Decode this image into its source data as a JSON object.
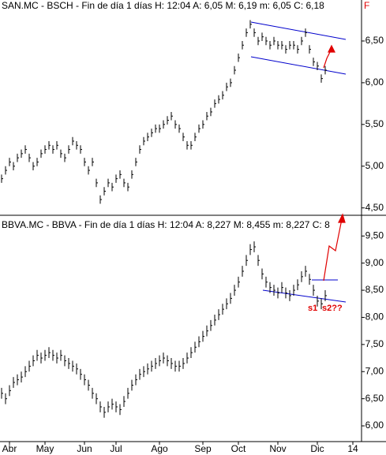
{
  "chart_data": [
    {
      "type": "ohlc",
      "title": "SAN.MC - BSCH - Fin de día 1 días H: 12:04 A: 6,05 M: 6,19 m: 6,05 C: 6,18",
      "flag": "F",
      "color": "#000000",
      "ylim": [
        4.44,
        6.84
      ],
      "yticks": [
        {
          "value": 6.5,
          "label": "6,50"
        },
        {
          "value": 6.0,
          "label": "6,00"
        },
        {
          "value": 5.5,
          "label": "5,50"
        },
        {
          "value": 5.0,
          "label": "5,00"
        },
        {
          "value": 4.5,
          "label": "4,50"
        }
      ],
      "high": [
        4.9,
        5.0,
        5.1,
        5.05,
        5.15,
        5.2,
        5.25,
        5.15,
        5.05,
        5.1,
        5.2,
        5.25,
        5.3,
        5.25,
        5.3,
        5.2,
        5.15,
        5.25,
        5.35,
        5.3,
        5.25,
        5.1,
        5.0,
        5.1,
        4.85,
        4.65,
        4.75,
        4.85,
        4.8,
        4.9,
        4.95,
        4.85,
        4.8,
        4.95,
        5.1,
        5.25,
        5.35,
        5.4,
        5.45,
        5.5,
        5.5,
        5.55,
        5.6,
        5.65,
        5.55,
        5.5,
        5.4,
        5.3,
        5.3,
        5.4,
        5.5,
        5.55,
        5.65,
        5.7,
        5.8,
        5.85,
        5.9,
        6.0,
        6.05,
        6.2,
        6.35,
        6.5,
        6.65,
        6.75,
        6.65,
        6.55,
        6.6,
        6.55,
        6.5,
        6.55,
        6.5,
        6.5,
        6.45,
        6.5,
        6.5,
        6.45,
        6.55,
        6.65,
        6.45,
        6.3,
        6.25,
        6.1,
        6.2
      ],
      "low": [
        4.8,
        4.9,
        5.0,
        4.95,
        5.05,
        5.1,
        5.15,
        5.05,
        4.95,
        5.0,
        5.1,
        5.15,
        5.2,
        5.15,
        5.2,
        5.1,
        5.05,
        5.15,
        5.25,
        5.2,
        5.15,
        5.0,
        4.9,
        5.0,
        4.75,
        4.55,
        4.65,
        4.75,
        4.7,
        4.8,
        4.85,
        4.75,
        4.7,
        4.85,
        5.0,
        5.15,
        5.25,
        5.3,
        5.35,
        5.4,
        5.4,
        5.45,
        5.5,
        5.55,
        5.45,
        5.4,
        5.3,
        5.2,
        5.2,
        5.3,
        5.4,
        5.45,
        5.55,
        5.6,
        5.7,
        5.75,
        5.8,
        5.9,
        5.95,
        6.1,
        6.25,
        6.4,
        6.55,
        6.65,
        6.55,
        6.45,
        6.5,
        6.45,
        6.4,
        6.45,
        6.4,
        6.4,
        6.35,
        6.4,
        6.4,
        6.35,
        6.45,
        6.55,
        6.35,
        6.2,
        6.15,
        6.0,
        6.1
      ]
    },
    {
      "type": "ohlc",
      "title": "BBVA.MC - BBVA - Fin de día 1 días H: 12:04 A: 8,227 M: 8,455 m: 8,227 C: 8",
      "color": "#000000",
      "annotations": [
        "s1",
        "s2??"
      ],
      "ylim": [
        5.71,
        9.78
      ],
      "yticks": [
        {
          "value": 9.5,
          "label": "9,50"
        },
        {
          "value": 9.0,
          "label": "9,00"
        },
        {
          "value": 8.5,
          "label": "8,50"
        },
        {
          "value": 8.0,
          "label": "8,00"
        },
        {
          "value": 7.5,
          "label": "7,50"
        },
        {
          "value": 7.0,
          "label": "7,00"
        },
        {
          "value": 6.5,
          "label": "6,50"
        },
        {
          "value": 6.0,
          "label": "6,00"
        }
      ],
      "categories": [
        null,
        null,
        "Abr",
        null,
        null,
        null,
        null,
        null,
        null,
        null,
        null,
        "May",
        null,
        null,
        null,
        null,
        null,
        null,
        null,
        null,
        null,
        "Jun",
        null,
        null,
        null,
        null,
        null,
        null,
        null,
        "Jul",
        null,
        null,
        null,
        null,
        null,
        null,
        null,
        null,
        null,
        null,
        "Ago",
        null,
        null,
        null,
        null,
        null,
        null,
        null,
        null,
        null,
        null,
        "Sep",
        null,
        null,
        null,
        null,
        null,
        null,
        null,
        null,
        "Oct",
        null,
        null,
        null,
        null,
        null,
        null,
        null,
        null,
        null,
        "Nov",
        null,
        null,
        null,
        null,
        null,
        null,
        null,
        null,
        null,
        "Dic",
        null,
        null,
        null,
        null,
        null,
        null,
        null,
        null,
        "14"
      ],
      "high": [
        6.7,
        6.6,
        6.75,
        6.9,
        6.95,
        7.0,
        7.1,
        7.2,
        7.3,
        7.4,
        7.35,
        7.4,
        7.45,
        7.4,
        7.35,
        7.4,
        7.3,
        7.25,
        7.2,
        7.15,
        7.05,
        6.95,
        6.85,
        6.7,
        6.6,
        6.45,
        6.35,
        6.45,
        6.5,
        6.45,
        6.4,
        6.55,
        6.7,
        6.85,
        6.95,
        7.05,
        7.1,
        7.15,
        7.2,
        7.25,
        7.3,
        7.35,
        7.3,
        7.25,
        7.2,
        7.2,
        7.25,
        7.35,
        7.45,
        7.55,
        7.65,
        7.75,
        7.85,
        7.95,
        8.05,
        8.15,
        8.25,
        8.35,
        8.45,
        8.6,
        8.75,
        8.95,
        9.15,
        9.35,
        9.4,
        9.15,
        8.9,
        8.75,
        8.65,
        8.6,
        8.55,
        8.65,
        8.55,
        8.5,
        8.6,
        8.7,
        8.85,
        8.95,
        8.8,
        8.6,
        8.4,
        8.35,
        8.5,
        null,
        null,
        null,
        null,
        null,
        null,
        null
      ],
      "low": [
        6.5,
        6.4,
        6.55,
        6.7,
        6.75,
        6.8,
        6.9,
        7.0,
        7.1,
        7.2,
        7.15,
        7.2,
        7.25,
        7.2,
        7.15,
        7.2,
        7.1,
        7.05,
        7.0,
        6.95,
        6.85,
        6.75,
        6.65,
        6.5,
        6.4,
        6.25,
        6.15,
        6.25,
        6.3,
        6.25,
        6.2,
        6.35,
        6.5,
        6.65,
        6.75,
        6.85,
        6.9,
        6.95,
        7.0,
        7.05,
        7.1,
        7.15,
        7.1,
        7.05,
        7.0,
        7.0,
        7.05,
        7.15,
        7.25,
        7.35,
        7.45,
        7.55,
        7.65,
        7.75,
        7.85,
        7.95,
        8.05,
        8.15,
        8.25,
        8.4,
        8.55,
        8.75,
        8.95,
        9.15,
        9.2,
        8.95,
        8.7,
        8.55,
        8.45,
        8.4,
        8.35,
        8.45,
        8.35,
        8.3,
        8.4,
        8.5,
        8.65,
        8.75,
        8.6,
        8.4,
        8.2,
        8.15,
        8.3,
        null,
        null,
        null,
        null,
        null,
        null,
        null
      ]
    }
  ]
}
